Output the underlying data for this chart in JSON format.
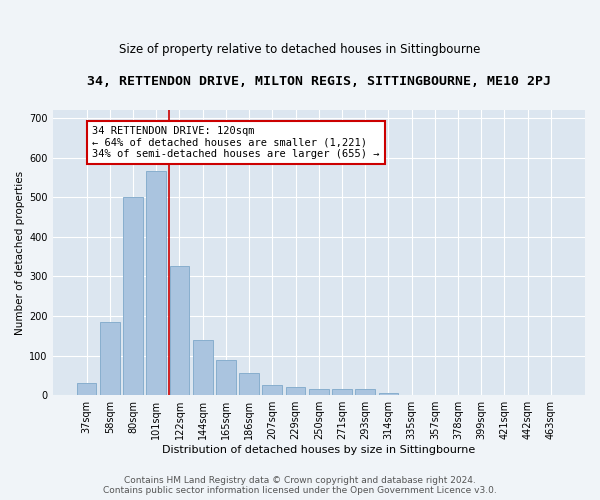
{
  "title": "34, RETTENDON DRIVE, MILTON REGIS, SITTINGBOURNE, ME10 2PJ",
  "subtitle": "Size of property relative to detached houses in Sittingbourne",
  "xlabel": "Distribution of detached houses by size in Sittingbourne",
  "ylabel": "Number of detached properties",
  "footer_line1": "Contains HM Land Registry data © Crown copyright and database right 2024.",
  "footer_line2": "Contains public sector information licensed under the Open Government Licence v3.0.",
  "categories": [
    "37sqm",
    "58sqm",
    "80sqm",
    "101sqm",
    "122sqm",
    "144sqm",
    "165sqm",
    "186sqm",
    "207sqm",
    "229sqm",
    "250sqm",
    "271sqm",
    "293sqm",
    "314sqm",
    "335sqm",
    "357sqm",
    "378sqm",
    "399sqm",
    "421sqm",
    "442sqm",
    "463sqm"
  ],
  "values": [
    30,
    185,
    500,
    565,
    325,
    140,
    90,
    55,
    25,
    20,
    15,
    15,
    15,
    5,
    0,
    0,
    0,
    0,
    0,
    0,
    0
  ],
  "bar_color": "#aac4df",
  "bar_edgecolor": "#88aece",
  "fig_facecolor": "#f0f4f8",
  "ax_facecolor": "#dce6f0",
  "grid_color": "#ffffff",
  "annotation_text": "34 RETTENDON DRIVE: 120sqm\n← 64% of detached houses are smaller (1,221)\n34% of semi-detached houses are larger (655) →",
  "annotation_box_facecolor": "#ffffff",
  "annotation_box_edgecolor": "#cc0000",
  "vline_color": "#cc0000",
  "vline_x": 3.57,
  "ylim": [
    0,
    720
  ],
  "yticks": [
    0,
    100,
    200,
    300,
    400,
    500,
    600,
    700
  ],
  "title_fontsize": 9.5,
  "subtitle_fontsize": 8.5,
  "xlabel_fontsize": 8,
  "ylabel_fontsize": 7.5,
  "tick_fontsize": 7,
  "annotation_fontsize": 7.5,
  "footer_fontsize": 6.5
}
